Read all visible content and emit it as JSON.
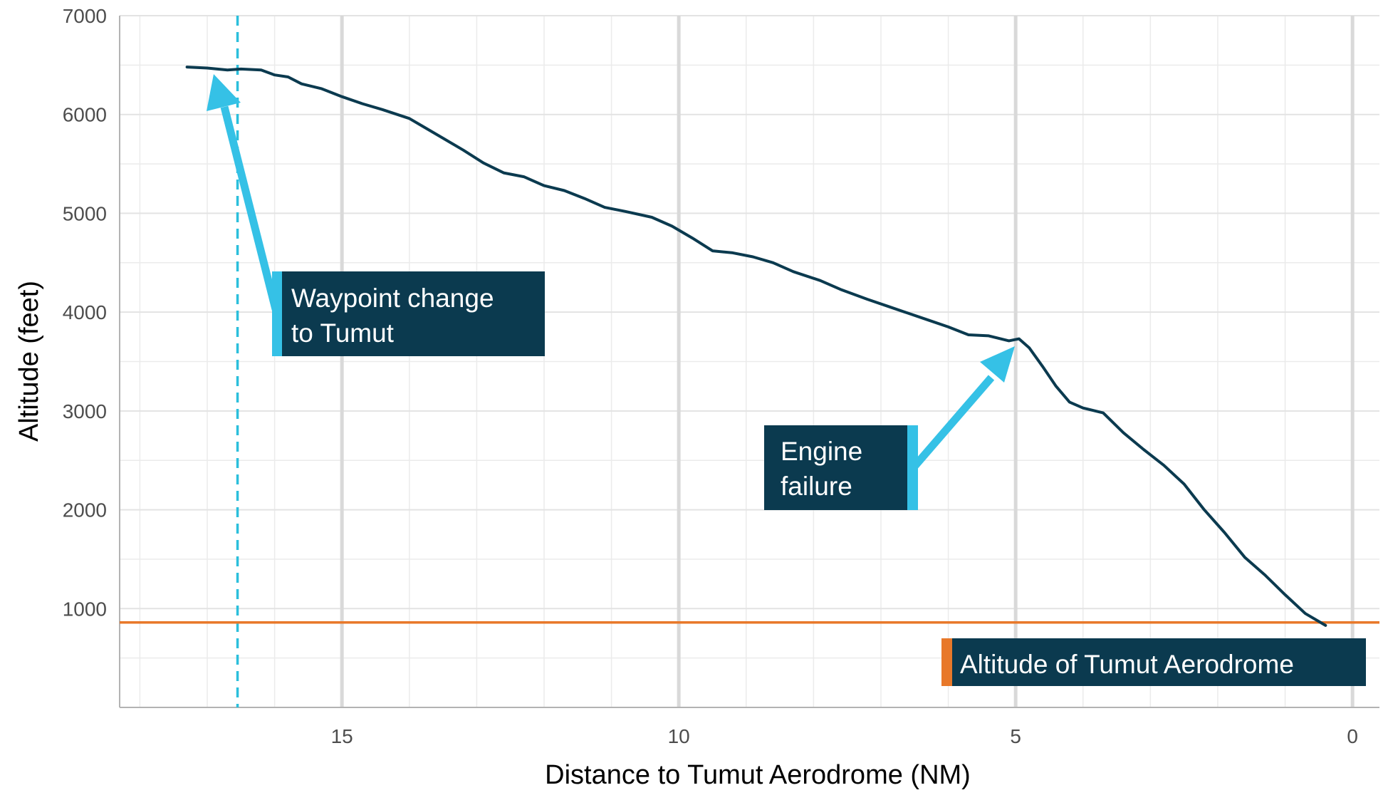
{
  "chart_data": {
    "type": "line",
    "xlabel": "Distance to Tumut Aerodrome (NM)",
    "ylabel": "Altitude (feet)",
    "xlim": [
      18.3,
      -0.4
    ],
    "ylim": [
      0,
      7000
    ],
    "x_reversed": true,
    "x_ticks": [
      "15",
      "10",
      "5",
      "0"
    ],
    "y_ticks": [
      "1000",
      "2000",
      "3000",
      "4000",
      "5000",
      "6000",
      "7000"
    ],
    "grid": true,
    "series": [
      {
        "color": "#0b3a4f",
        "points": [
          [
            17.3,
            6480
          ],
          [
            17.0,
            6470
          ],
          [
            16.7,
            6450
          ],
          [
            16.5,
            6460
          ],
          [
            16.2,
            6450
          ],
          [
            16.0,
            6400
          ],
          [
            15.8,
            6380
          ],
          [
            15.6,
            6310
          ],
          [
            15.3,
            6260
          ],
          [
            15.0,
            6180
          ],
          [
            14.7,
            6110
          ],
          [
            14.4,
            6050
          ],
          [
            14.0,
            5960
          ],
          [
            13.8,
            5880
          ],
          [
            13.5,
            5760
          ],
          [
            13.2,
            5640
          ],
          [
            12.9,
            5510
          ],
          [
            12.6,
            5410
          ],
          [
            12.3,
            5370
          ],
          [
            12.0,
            5280
          ],
          [
            11.7,
            5230
          ],
          [
            11.4,
            5150
          ],
          [
            11.1,
            5060
          ],
          [
            10.8,
            5020
          ],
          [
            10.4,
            4960
          ],
          [
            10.1,
            4870
          ],
          [
            9.8,
            4750
          ],
          [
            9.5,
            4620
          ],
          [
            9.2,
            4600
          ],
          [
            8.9,
            4560
          ],
          [
            8.6,
            4500
          ],
          [
            8.3,
            4410
          ],
          [
            7.9,
            4320
          ],
          [
            7.6,
            4230
          ],
          [
            7.2,
            4130
          ],
          [
            6.9,
            4060
          ],
          [
            6.6,
            3990
          ],
          [
            6.3,
            3920
          ],
          [
            6.0,
            3850
          ],
          [
            5.7,
            3770
          ],
          [
            5.4,
            3760
          ],
          [
            5.1,
            3710
          ],
          [
            4.95,
            3730
          ],
          [
            4.8,
            3640
          ],
          [
            4.6,
            3450
          ],
          [
            4.4,
            3250
          ],
          [
            4.2,
            3090
          ],
          [
            4.0,
            3030
          ],
          [
            3.7,
            2980
          ],
          [
            3.4,
            2780
          ],
          [
            3.1,
            2610
          ],
          [
            2.8,
            2450
          ],
          [
            2.5,
            2260
          ],
          [
            2.2,
            2000
          ],
          [
            1.9,
            1770
          ],
          [
            1.6,
            1520
          ],
          [
            1.3,
            1340
          ],
          [
            1.0,
            1140
          ],
          [
            0.7,
            950
          ],
          [
            0.4,
            830
          ]
        ]
      }
    ],
    "reference_lines": [
      {
        "orientation": "vertical",
        "x": 16.55,
        "style": "dashed",
        "color": "#2bbfdc"
      },
      {
        "orientation": "horizontal",
        "y": 860,
        "style": "solid",
        "color": "#e8782a"
      }
    ],
    "annotations": [
      {
        "lines": [
          "Waypoint change",
          "to Tumut"
        ],
        "box_color": "#0b3a4f",
        "accent_color": "#35c1e6"
      },
      {
        "lines": [
          "Engine",
          "failure"
        ],
        "box_color": "#0b3a4f",
        "accent_color": "#35c1e6"
      },
      {
        "lines": [
          "Altitude of Tumut Aerodrome"
        ],
        "box_color": "#0b3a4f",
        "accent_color": "#e8782a"
      }
    ]
  }
}
